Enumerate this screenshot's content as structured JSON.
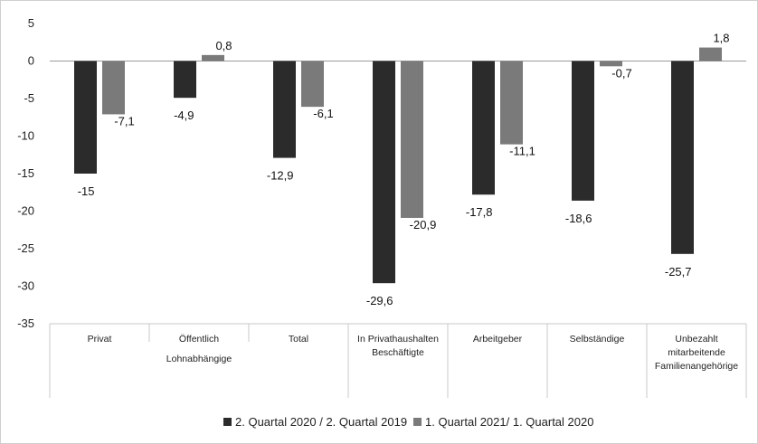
{
  "chart_data": {
    "type": "bar",
    "categories": [
      [
        "Privat"
      ],
      [
        "Öffentlich"
      ],
      [
        "Total"
      ],
      [
        "In Privathaushalten",
        "Beschäftigte"
      ],
      [
        "Arbeitgeber"
      ],
      [
        "Selbständige"
      ],
      [
        "Unbezahlt",
        "mitarbeitende",
        "Familienangehörige"
      ]
    ],
    "group_label": "Lohnabhängige",
    "series": [
      {
        "name": "2. Quartal 2020 / 2. Quartal 2019",
        "color": "#2b2b2b",
        "values": [
          -15,
          -4.9,
          -12.9,
          -29.6,
          -17.8,
          -18.6,
          -25.7
        ],
        "labels": [
          "-15",
          "-4,9",
          "-12,9",
          "-29,6",
          "-17,8",
          "-18,6",
          "-25,7"
        ]
      },
      {
        "name": "1. Quartal 2021/ 1. Quartal 2020",
        "color": "#7a7a7a",
        "values": [
          -7.1,
          0.8,
          -6.1,
          -20.9,
          -11.1,
          -0.7,
          1.8
        ],
        "labels": [
          "-7,1",
          "0,8",
          "-6,1",
          "-20,9",
          "-11,1",
          "-0,7",
          "1,8"
        ]
      }
    ],
    "y_ticks": [
      "5",
      "0",
      "-5",
      "-10",
      "-15",
      "-20",
      "-25",
      "-30",
      "-35"
    ],
    "ylim": [
      -35,
      5
    ],
    "grid": false,
    "legend_position": "bottom"
  }
}
